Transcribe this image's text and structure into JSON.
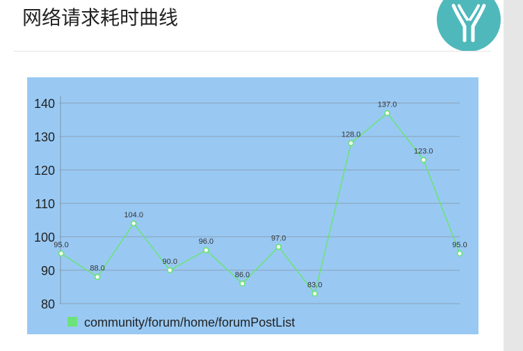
{
  "header": {
    "title": "网络请求耗时曲线"
  },
  "avatar": {
    "icon": "rabbit-logo-icon",
    "color": "#4fb8bb"
  },
  "chart_data": {
    "type": "line",
    "title": "",
    "xlabel": "",
    "ylabel": "",
    "x": [
      1,
      2,
      3,
      4,
      5,
      6,
      7,
      8,
      9,
      10,
      11,
      12
    ],
    "ylim": [
      80,
      140
    ],
    "yticks": [
      "80",
      "90",
      "100",
      "110",
      "120",
      "130",
      "140"
    ],
    "grid": true,
    "legend_position": "bottom-left",
    "background_color": "#99c9f3",
    "series": [
      {
        "name": "community/forum/home/forumPostList",
        "color": "#6ce27a",
        "values": [
          95.0,
          88.0,
          104.0,
          90.0,
          96.0,
          86.0,
          97.0,
          83.0,
          128.0,
          137.0,
          123.0,
          95.0
        ],
        "labels": [
          "95.0",
          "88.0",
          "104.0",
          "90.0",
          "96.0",
          "86.0",
          "97.0",
          "83.0",
          "128.0",
          "137.0",
          "123.0",
          "95.0"
        ]
      }
    ]
  }
}
